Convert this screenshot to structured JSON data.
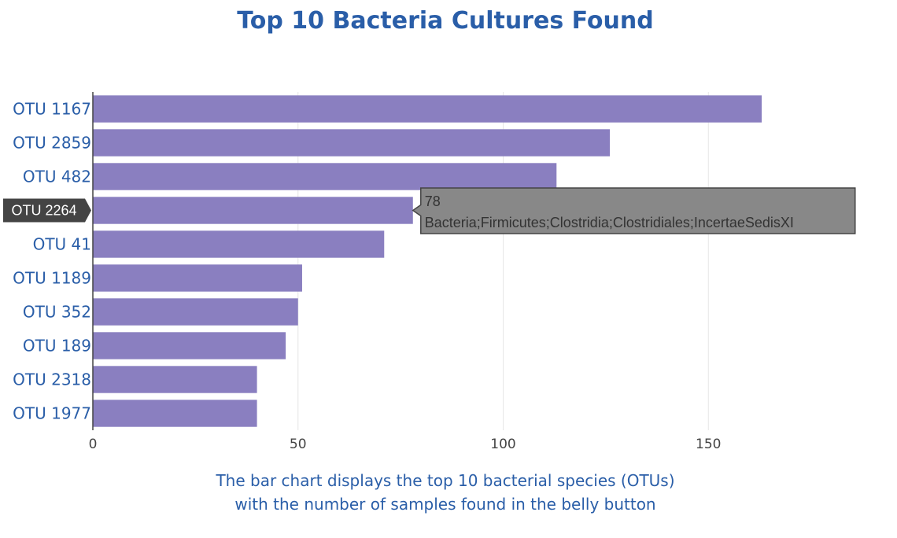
{
  "chart_data": {
    "type": "bar",
    "orientation": "horizontal",
    "title": "Top 10 Bacteria Cultures Found",
    "categories": [
      "OTU 1167",
      "OTU 2859",
      "OTU 482",
      "OTU 2264",
      "OTU 41",
      "OTU 1189",
      "OTU 352",
      "OTU 189",
      "OTU 2318",
      "OTU 1977"
    ],
    "values": [
      163,
      126,
      113,
      78,
      71,
      51,
      50,
      47,
      40,
      40
    ],
    "xlim": [
      0,
      186
    ],
    "x_ticks": [
      "0",
      "50",
      "100",
      "150"
    ],
    "x_tick_values": [
      0,
      50,
      100,
      150
    ],
    "bar_color": "#8a7fc0",
    "grid": true,
    "caption_lines": [
      "The bar chart displays the top 10 bacterial species (OTUs)",
      "with the number of samples found in the belly button"
    ],
    "hover": {
      "category": "OTU 2264",
      "value_text": "78",
      "taxonomy": "Bacteria;Firmicutes;Clostridia;Clostridiales;IncertaeSedisXI"
    }
  },
  "colors": {
    "title": "#2a5ea8",
    "tick_label": "#2a5ea8",
    "bar": "#8a7fc0",
    "tooltip_bg": "#888888",
    "hover_label_bg": "#444444"
  }
}
